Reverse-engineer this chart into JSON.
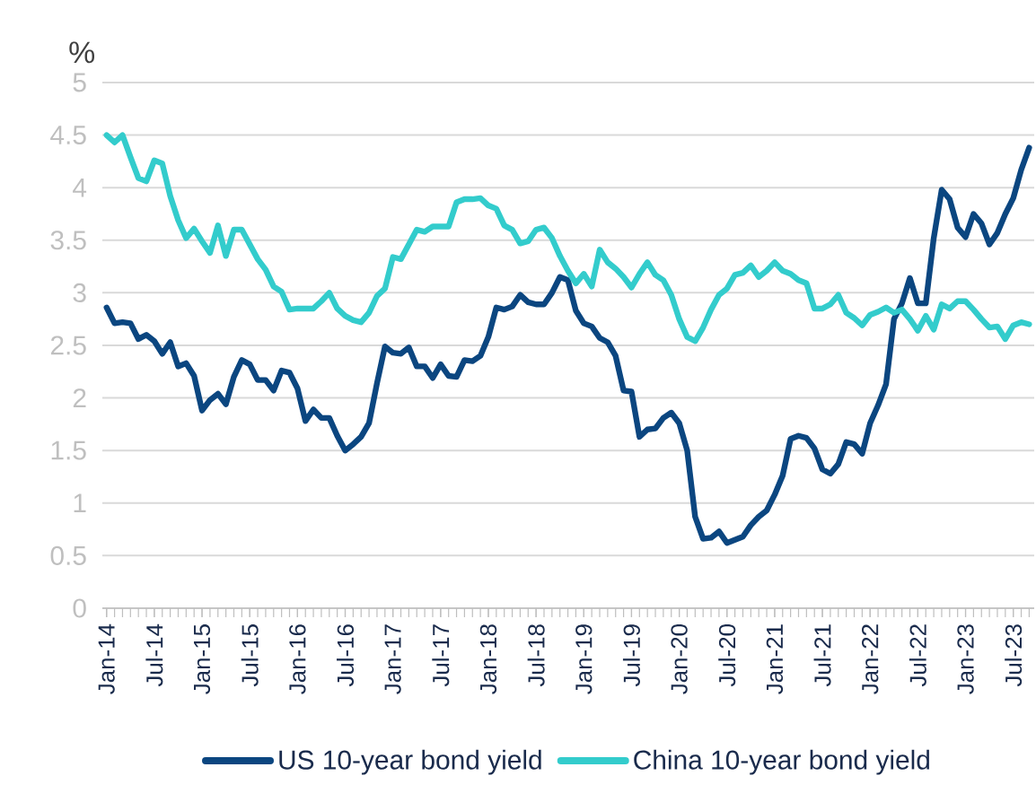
{
  "chart_data": {
    "type": "line",
    "ylabel": "%",
    "x": [
      "2014-01",
      "2014-02",
      "2014-03",
      "2014-04",
      "2014-05",
      "2014-06",
      "2014-07",
      "2014-08",
      "2014-09",
      "2014-10",
      "2014-11",
      "2014-12",
      "2015-01",
      "2015-02",
      "2015-03",
      "2015-04",
      "2015-05",
      "2015-06",
      "2015-07",
      "2015-08",
      "2015-09",
      "2015-10",
      "2015-11",
      "2015-12",
      "2016-01",
      "2016-02",
      "2016-03",
      "2016-04",
      "2016-05",
      "2016-06",
      "2016-07",
      "2016-08",
      "2016-09",
      "2016-10",
      "2016-11",
      "2016-12",
      "2017-01",
      "2017-02",
      "2017-03",
      "2017-04",
      "2017-05",
      "2017-06",
      "2017-07",
      "2017-08",
      "2017-09",
      "2017-10",
      "2017-11",
      "2017-12",
      "2018-01",
      "2018-02",
      "2018-03",
      "2018-04",
      "2018-05",
      "2018-06",
      "2018-07",
      "2018-08",
      "2018-09",
      "2018-10",
      "2018-11",
      "2018-12",
      "2019-01",
      "2019-02",
      "2019-03",
      "2019-04",
      "2019-05",
      "2019-06",
      "2019-07",
      "2019-08",
      "2019-09",
      "2019-10",
      "2019-11",
      "2019-12",
      "2020-01",
      "2020-02",
      "2020-03",
      "2020-04",
      "2020-05",
      "2020-06",
      "2020-07",
      "2020-08",
      "2020-09",
      "2020-10",
      "2020-11",
      "2020-12",
      "2021-01",
      "2021-02",
      "2021-03",
      "2021-04",
      "2021-05",
      "2021-06",
      "2021-07",
      "2021-08",
      "2021-09",
      "2021-10",
      "2021-11",
      "2021-12",
      "2022-01",
      "2022-02",
      "2022-03",
      "2022-04",
      "2022-05",
      "2022-06",
      "2022-07",
      "2022-08",
      "2022-09",
      "2022-10",
      "2022-11",
      "2022-12",
      "2023-01",
      "2023-02",
      "2023-03",
      "2023-04",
      "2023-05",
      "2023-06",
      "2023-07",
      "2023-08",
      "2023-09"
    ],
    "series": [
      {
        "name": "US 10-year bond yield",
        "color": "#0b4680",
        "values": [
          2.86,
          2.71,
          2.72,
          2.71,
          2.56,
          2.6,
          2.54,
          2.42,
          2.53,
          2.3,
          2.33,
          2.21,
          1.88,
          1.98,
          2.04,
          1.94,
          2.2,
          2.36,
          2.32,
          2.17,
          2.17,
          2.07,
          2.26,
          2.24,
          2.09,
          1.78,
          1.89,
          1.81,
          1.81,
          1.64,
          1.5,
          1.56,
          1.63,
          1.76,
          2.14,
          2.49,
          2.43,
          2.42,
          2.48,
          2.3,
          2.3,
          2.19,
          2.32,
          2.21,
          2.2,
          2.36,
          2.35,
          2.4,
          2.58,
          2.86,
          2.84,
          2.87,
          2.98,
          2.91,
          2.89,
          2.89,
          3.0,
          3.15,
          3.12,
          2.83,
          2.71,
          2.68,
          2.57,
          2.53,
          2.4,
          2.07,
          2.06,
          1.63,
          1.7,
          1.71,
          1.81,
          1.86,
          1.76,
          1.5,
          0.87,
          0.66,
          0.67,
          0.73,
          0.62,
          0.65,
          0.68,
          0.79,
          0.87,
          0.93,
          1.08,
          1.26,
          1.61,
          1.64,
          1.62,
          1.52,
          1.32,
          1.28,
          1.37,
          1.58,
          1.56,
          1.47,
          1.76,
          1.93,
          2.13,
          2.75,
          2.9,
          3.14,
          2.9,
          2.9,
          3.52,
          3.98,
          3.89,
          3.62,
          3.53,
          3.75,
          3.66,
          3.46,
          3.57,
          3.75,
          3.9,
          4.17,
          4.38
        ]
      },
      {
        "name": "China 10-year bond yield",
        "color": "#33cccc",
        "values": [
          4.5,
          4.43,
          4.5,
          4.29,
          4.09,
          4.06,
          4.26,
          4.23,
          3.92,
          3.69,
          3.52,
          3.61,
          3.49,
          3.38,
          3.64,
          3.35,
          3.6,
          3.6,
          3.46,
          3.32,
          3.22,
          3.06,
          3.01,
          2.84,
          2.85,
          2.85,
          2.85,
          2.92,
          3.0,
          2.85,
          2.78,
          2.74,
          2.72,
          2.81,
          2.97,
          3.04,
          3.34,
          3.32,
          3.46,
          3.6,
          3.58,
          3.63,
          3.63,
          3.63,
          3.86,
          3.89,
          3.89,
          3.9,
          3.83,
          3.8,
          3.64,
          3.6,
          3.47,
          3.49,
          3.6,
          3.62,
          3.52,
          3.35,
          3.21,
          3.09,
          3.18,
          3.06,
          3.41,
          3.29,
          3.23,
          3.15,
          3.05,
          3.18,
          3.29,
          3.17,
          3.12,
          2.98,
          2.75,
          2.58,
          2.54,
          2.67,
          2.84,
          2.98,
          3.04,
          3.17,
          3.19,
          3.26,
          3.15,
          3.21,
          3.29,
          3.21,
          3.18,
          3.12,
          3.09,
          2.85,
          2.85,
          2.89,
          2.98,
          2.81,
          2.76,
          2.69,
          2.79,
          2.82,
          2.86,
          2.81,
          2.84,
          2.75,
          2.64,
          2.78,
          2.65,
          2.89,
          2.85,
          2.92,
          2.92,
          2.84,
          2.75,
          2.67,
          2.68,
          2.56,
          2.69,
          2.72,
          2.7
        ]
      }
    ],
    "xlim": [
      "2013-12-15",
      "2023-09-20"
    ],
    "xticks": [
      {
        "value": "2014-01",
        "label": "Jan-14"
      },
      {
        "value": "2014-07",
        "label": "Jul-14"
      },
      {
        "value": "2015-01",
        "label": "Jan-15"
      },
      {
        "value": "2015-07",
        "label": "Jul-15"
      },
      {
        "value": "2016-01",
        "label": "Jan-16"
      },
      {
        "value": "2016-07",
        "label": "Jul-16"
      },
      {
        "value": "2017-01",
        "label": "Jan-17"
      },
      {
        "value": "2017-07",
        "label": "Jul-17"
      },
      {
        "value": "2018-01",
        "label": "Jan-18"
      },
      {
        "value": "2018-07",
        "label": "Jul-18"
      },
      {
        "value": "2019-01",
        "label": "Jan-19"
      },
      {
        "value": "2019-07",
        "label": "Jul-19"
      },
      {
        "value": "2020-01",
        "label": "Jan-20"
      },
      {
        "value": "2020-07",
        "label": "Jul-20"
      },
      {
        "value": "2021-01",
        "label": "Jan-21"
      },
      {
        "value": "2021-07",
        "label": "Jul-21"
      },
      {
        "value": "2022-01",
        "label": "Jan-22"
      },
      {
        "value": "2022-07",
        "label": "Jul-22"
      },
      {
        "value": "2023-01",
        "label": "Jan-23"
      },
      {
        "value": "2023-07",
        "label": "Jul-23"
      }
    ],
    "ylim": [
      0,
      5
    ],
    "yticks": [
      0,
      0.5,
      1,
      1.5,
      2,
      2.5,
      3,
      3.5,
      4,
      4.5,
      5
    ],
    "grid": "y",
    "legend": "bottom",
    "marker": "none",
    "line_style": "solid"
  }
}
